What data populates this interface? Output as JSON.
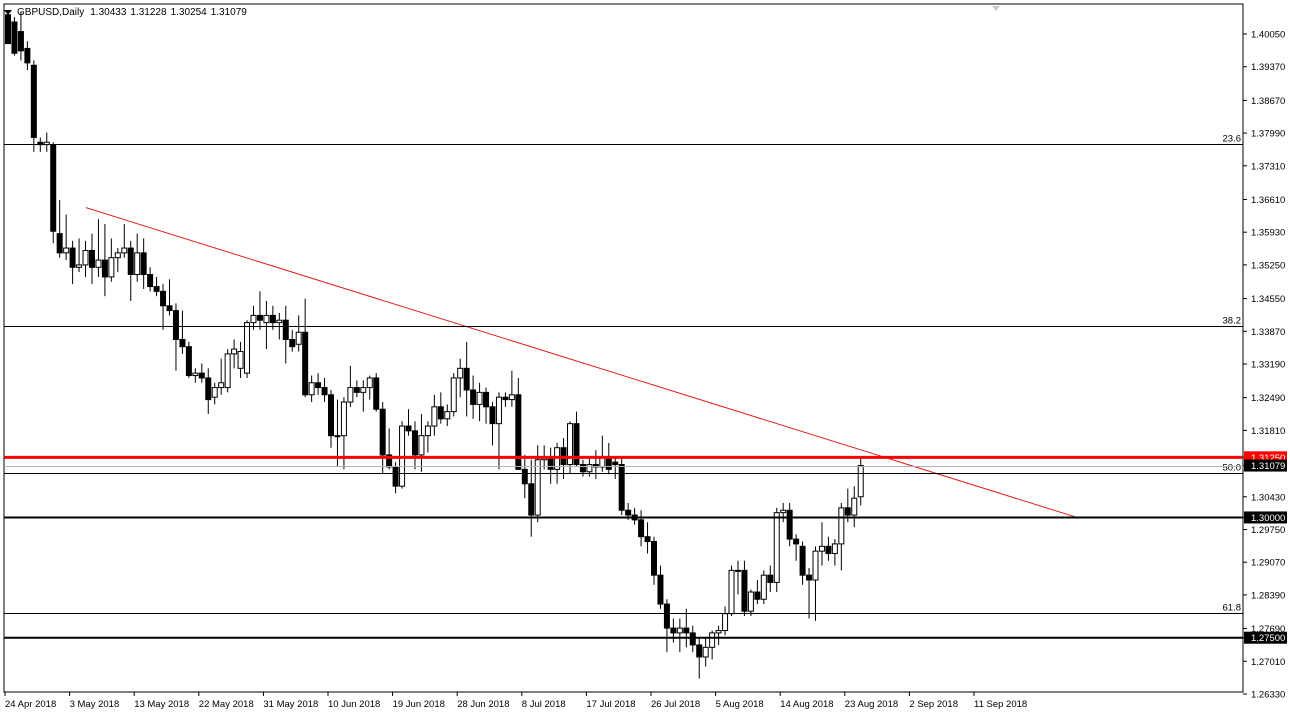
{
  "header": {
    "symbol_label": "GBPUSD,Daily",
    "open": "1.30433",
    "high": "1.31228",
    "low": "1.30254",
    "close": "1.31079"
  },
  "price_axis": {
    "ticks": [
      "1.40050",
      "1.39370",
      "1.38670",
      "1.37990",
      "1.37310",
      "1.36610",
      "1.35930",
      "1.35250",
      "1.34550",
      "1.33870",
      "1.33190",
      "1.32490",
      "1.31810",
      "1.31250",
      "1.31079",
      "1.30430",
      "1.30000",
      "1.29750",
      "1.29070",
      "1.28390",
      "1.27690",
      "1.27500",
      "1.27010",
      "1.26330"
    ]
  },
  "time_axis": {
    "labels": [
      "24 Apr 2018",
      "3 May 2018",
      "13 May 2018",
      "22 May 2018",
      "31 May 2018",
      "10 Jun 2018",
      "19 Jun 2018",
      "28 Jun 2018",
      "8 Jul 2018",
      "17 Jul 2018",
      "26 Jul 2018",
      "5 Aug 2018",
      "14 Aug 2018",
      "23 Aug 2018",
      "2 Sep 2018",
      "11 Sep 2018"
    ]
  },
  "fibonacci": [
    {
      "label": "23.6",
      "price": 1.3776
    },
    {
      "label": "38.2",
      "price": 1.3398
    },
    {
      "label": "50.0",
      "price": 1.3093
    },
    {
      "label": "61.8",
      "price": 1.2801
    }
  ],
  "horizontal_lines": [
    {
      "label": "1.31250",
      "price": 1.3125,
      "color": "#ff0000"
    },
    {
      "label": "1.30000",
      "price": 1.3,
      "color": "#000000"
    },
    {
      "label": "1.27500",
      "price": 1.275,
      "color": "#000000"
    }
  ],
  "chart_data": {
    "type": "candlestick",
    "title": "GBPUSD,Daily",
    "ylim": [
      1.2623,
      1.4095
    ],
    "x_range": [
      "24 Apr 2018",
      "14 Sep 2018"
    ],
    "grid": false,
    "current_price": 1.31079,
    "trendline": {
      "color": "#e02020",
      "points": [
        [
          1.3644,
          "4 May 2018"
        ],
        [
          1.3,
          "19 Sep 2018"
        ]
      ]
    },
    "candles": [
      {
        "o": 1.4045,
        "h": 1.4049,
        "l": 1.3985,
        "c": 1.3985
      },
      {
        "o": 1.403,
        "h": 1.404,
        "l": 1.396,
        "c": 1.3965
      },
      {
        "o": 1.401,
        "h": 1.4052,
        "l": 1.395,
        "c": 1.397
      },
      {
        "o": 1.3975,
        "h": 1.399,
        "l": 1.393,
        "c": 1.3945
      },
      {
        "o": 1.394,
        "h": 1.395,
        "l": 1.376,
        "c": 1.379
      },
      {
        "o": 1.378,
        "h": 1.379,
        "l": 1.376,
        "c": 1.3775
      },
      {
        "o": 1.3775,
        "h": 1.38,
        "l": 1.376,
        "c": 1.378
      },
      {
        "o": 1.3775,
        "h": 1.378,
        "l": 1.357,
        "c": 1.3595
      },
      {
        "o": 1.359,
        "h": 1.366,
        "l": 1.354,
        "c": 1.355
      },
      {
        "o": 1.355,
        "h": 1.363,
        "l": 1.3535,
        "c": 1.356
      },
      {
        "o": 1.356,
        "h": 1.3575,
        "l": 1.3485,
        "c": 1.352
      },
      {
        "o": 1.352,
        "h": 1.358,
        "l": 1.351,
        "c": 1.3525
      },
      {
        "o": 1.3525,
        "h": 1.3575,
        "l": 1.35,
        "c": 1.3555
      },
      {
        "o": 1.3555,
        "h": 1.359,
        "l": 1.3485,
        "c": 1.352
      },
      {
        "o": 1.352,
        "h": 1.362,
        "l": 1.35,
        "c": 1.3535
      },
      {
        "o": 1.3535,
        "h": 1.361,
        "l": 1.346,
        "c": 1.35
      },
      {
        "o": 1.35,
        "h": 1.358,
        "l": 1.349,
        "c": 1.354
      },
      {
        "o": 1.354,
        "h": 1.356,
        "l": 1.351,
        "c": 1.355
      },
      {
        "o": 1.355,
        "h": 1.361,
        "l": 1.354,
        "c": 1.356
      },
      {
        "o": 1.356,
        "h": 1.3575,
        "l": 1.345,
        "c": 1.3505
      },
      {
        "o": 1.3505,
        "h": 1.359,
        "l": 1.349,
        "c": 1.355
      },
      {
        "o": 1.355,
        "h": 1.358,
        "l": 1.3475,
        "c": 1.3505
      },
      {
        "o": 1.3505,
        "h": 1.352,
        "l": 1.347,
        "c": 1.348
      },
      {
        "o": 1.348,
        "h": 1.35,
        "l": 1.346,
        "c": 1.347
      },
      {
        "o": 1.347,
        "h": 1.3485,
        "l": 1.339,
        "c": 1.344
      },
      {
        "o": 1.344,
        "h": 1.3495,
        "l": 1.342,
        "c": 1.343
      },
      {
        "o": 1.343,
        "h": 1.3445,
        "l": 1.3305,
        "c": 1.337
      },
      {
        "o": 1.337,
        "h": 1.343,
        "l": 1.334,
        "c": 1.3355
      },
      {
        "o": 1.3355,
        "h": 1.3365,
        "l": 1.329,
        "c": 1.3295
      },
      {
        "o": 1.3295,
        "h": 1.331,
        "l": 1.328,
        "c": 1.33
      },
      {
        "o": 1.33,
        "h": 1.332,
        "l": 1.328,
        "c": 1.329
      },
      {
        "o": 1.329,
        "h": 1.331,
        "l": 1.3215,
        "c": 1.3245
      },
      {
        "o": 1.325,
        "h": 1.328,
        "l": 1.3235,
        "c": 1.327
      },
      {
        "o": 1.327,
        "h": 1.333,
        "l": 1.3255,
        "c": 1.328
      },
      {
        "o": 1.327,
        "h": 1.335,
        "l": 1.326,
        "c": 1.334
      },
      {
        "o": 1.334,
        "h": 1.337,
        "l": 1.331,
        "c": 1.335
      },
      {
        "o": 1.331,
        "h": 1.3365,
        "l": 1.329,
        "c": 1.3345
      },
      {
        "o": 1.33,
        "h": 1.341,
        "l": 1.329,
        "c": 1.3405
      },
      {
        "o": 1.3405,
        "h": 1.344,
        "l": 1.339,
        "c": 1.342
      },
      {
        "o": 1.342,
        "h": 1.347,
        "l": 1.339,
        "c": 1.341
      },
      {
        "o": 1.3405,
        "h": 1.345,
        "l": 1.335,
        "c": 1.342
      },
      {
        "o": 1.342,
        "h": 1.344,
        "l": 1.339,
        "c": 1.3405
      },
      {
        "o": 1.3405,
        "h": 1.3425,
        "l": 1.337,
        "c": 1.341
      },
      {
        "o": 1.341,
        "h": 1.344,
        "l": 1.332,
        "c": 1.337
      },
      {
        "o": 1.337,
        "h": 1.339,
        "l": 1.3345,
        "c": 1.3355
      },
      {
        "o": 1.336,
        "h": 1.342,
        "l": 1.3345,
        "c": 1.3385
      },
      {
        "o": 1.3385,
        "h": 1.3455,
        "l": 1.325,
        "c": 1.3255
      },
      {
        "o": 1.3255,
        "h": 1.3295,
        "l": 1.324,
        "c": 1.328
      },
      {
        "o": 1.328,
        "h": 1.33,
        "l": 1.3255,
        "c": 1.327
      },
      {
        "o": 1.327,
        "h": 1.329,
        "l": 1.324,
        "c": 1.3255
      },
      {
        "o": 1.3255,
        "h": 1.3265,
        "l": 1.3145,
        "c": 1.317
      },
      {
        "o": 1.317,
        "h": 1.3245,
        "l": 1.3105,
        "c": 1.317
      },
      {
        "o": 1.317,
        "h": 1.325,
        "l": 1.31,
        "c": 1.324
      },
      {
        "o": 1.324,
        "h": 1.3315,
        "l": 1.323,
        "c": 1.327
      },
      {
        "o": 1.327,
        "h": 1.3285,
        "l": 1.325,
        "c": 1.326
      },
      {
        "o": 1.326,
        "h": 1.3285,
        "l": 1.322,
        "c": 1.327
      },
      {
        "o": 1.327,
        "h": 1.3295,
        "l": 1.3245,
        "c": 1.329
      },
      {
        "o": 1.329,
        "h": 1.33,
        "l": 1.322,
        "c": 1.3225
      },
      {
        "o": 1.3225,
        "h": 1.324,
        "l": 1.309,
        "c": 1.313
      },
      {
        "o": 1.313,
        "h": 1.3185,
        "l": 1.31,
        "c": 1.3105
      },
      {
        "o": 1.3105,
        "h": 1.3115,
        "l": 1.305,
        "c": 1.3065
      },
      {
        "o": 1.3065,
        "h": 1.32,
        "l": 1.306,
        "c": 1.319
      },
      {
        "o": 1.319,
        "h": 1.3225,
        "l": 1.317,
        "c": 1.318
      },
      {
        "o": 1.318,
        "h": 1.32,
        "l": 1.31,
        "c": 1.313
      },
      {
        "o": 1.313,
        "h": 1.3215,
        "l": 1.3095,
        "c": 1.317
      },
      {
        "o": 1.317,
        "h": 1.32,
        "l": 1.3135,
        "c": 1.319
      },
      {
        "o": 1.319,
        "h": 1.3255,
        "l": 1.317,
        "c": 1.323
      },
      {
        "o": 1.323,
        "h": 1.326,
        "l": 1.3195,
        "c": 1.3205
      },
      {
        "o": 1.3205,
        "h": 1.3235,
        "l": 1.319,
        "c": 1.322
      },
      {
        "o": 1.322,
        "h": 1.33,
        "l": 1.321,
        "c": 1.329
      },
      {
        "o": 1.329,
        "h": 1.333,
        "l": 1.325,
        "c": 1.331
      },
      {
        "o": 1.331,
        "h": 1.3365,
        "l": 1.321,
        "c": 1.3265
      },
      {
        "o": 1.3265,
        "h": 1.3295,
        "l": 1.3205,
        "c": 1.3235
      },
      {
        "o": 1.3235,
        "h": 1.328,
        "l": 1.32,
        "c": 1.326
      },
      {
        "o": 1.326,
        "h": 1.327,
        "l": 1.3195,
        "c": 1.323
      },
      {
        "o": 1.323,
        "h": 1.324,
        "l": 1.315,
        "c": 1.3195
      },
      {
        "o": 1.3195,
        "h": 1.326,
        "l": 1.31,
        "c": 1.325
      },
      {
        "o": 1.325,
        "h": 1.326,
        "l": 1.323,
        "c": 1.3245
      },
      {
        "o": 1.3245,
        "h": 1.3305,
        "l": 1.323,
        "c": 1.3255
      },
      {
        "o": 1.3255,
        "h": 1.329,
        "l": 1.31,
        "c": 1.31
      },
      {
        "o": 1.31,
        "h": 1.313,
        "l": 1.304,
        "c": 1.307
      },
      {
        "o": 1.307,
        "h": 1.312,
        "l": 1.296,
        "c": 1.3005
      },
      {
        "o": 1.3005,
        "h": 1.315,
        "l": 1.299,
        "c": 1.312
      },
      {
        "o": 1.312,
        "h": 1.315,
        "l": 1.31,
        "c": 1.3125
      },
      {
        "o": 1.3125,
        "h": 1.3145,
        "l": 1.307,
        "c": 1.31
      },
      {
        "o": 1.31,
        "h": 1.3155,
        "l": 1.307,
        "c": 1.3145
      },
      {
        "o": 1.3145,
        "h": 1.3165,
        "l": 1.308,
        "c": 1.311
      },
      {
        "o": 1.311,
        "h": 1.32,
        "l": 1.309,
        "c": 1.3195
      },
      {
        "o": 1.3195,
        "h": 1.322,
        "l": 1.3105,
        "c": 1.311
      },
      {
        "o": 1.311,
        "h": 1.312,
        "l": 1.3085,
        "c": 1.3095
      },
      {
        "o": 1.3095,
        "h": 1.3125,
        "l": 1.3085,
        "c": 1.311
      },
      {
        "o": 1.311,
        "h": 1.314,
        "l": 1.308,
        "c": 1.3105
      },
      {
        "o": 1.3105,
        "h": 1.317,
        "l": 1.3095,
        "c": 1.3125
      },
      {
        "o": 1.3125,
        "h": 1.3155,
        "l": 1.309,
        "c": 1.31
      },
      {
        "o": 1.3115,
        "h": 1.3125,
        "l": 1.308,
        "c": 1.311
      },
      {
        "o": 1.311,
        "h": 1.3125,
        "l": 1.3005,
        "c": 1.3015
      },
      {
        "o": 1.3015,
        "h": 1.303,
        "l": 1.2995,
        "c": 1.3005
      },
      {
        "o": 1.3005,
        "h": 1.302,
        "l": 1.2985,
        "c": 1.2995
      },
      {
        "o": 1.2995,
        "h": 1.3015,
        "l": 1.294,
        "c": 1.296
      },
      {
        "o": 1.296,
        "h": 1.299,
        "l": 1.2925,
        "c": 1.295
      },
      {
        "o": 1.295,
        "h": 1.296,
        "l": 1.286,
        "c": 1.288
      },
      {
        "o": 1.288,
        "h": 1.29,
        "l": 1.281,
        "c": 1.282
      },
      {
        "o": 1.282,
        "h": 1.283,
        "l": 1.272,
        "c": 1.277
      },
      {
        "o": 1.277,
        "h": 1.279,
        "l": 1.274,
        "c": 1.276
      },
      {
        "o": 1.276,
        "h": 1.279,
        "l": 1.272,
        "c": 1.277
      },
      {
        "o": 1.277,
        "h": 1.281,
        "l": 1.273,
        "c": 1.276
      },
      {
        "o": 1.276,
        "h": 1.2775,
        "l": 1.272,
        "c": 1.2735
      },
      {
        "o": 1.2735,
        "h": 1.275,
        "l": 1.2665,
        "c": 1.271
      },
      {
        "o": 1.271,
        "h": 1.275,
        "l": 1.269,
        "c": 1.273
      },
      {
        "o": 1.273,
        "h": 1.2765,
        "l": 1.2705,
        "c": 1.276
      },
      {
        "o": 1.276,
        "h": 1.2775,
        "l": 1.2735,
        "c": 1.2765
      },
      {
        "o": 1.2765,
        "h": 1.2815,
        "l": 1.2755,
        "c": 1.28
      },
      {
        "o": 1.28,
        "h": 1.29,
        "l": 1.2795,
        "c": 1.289
      },
      {
        "o": 1.289,
        "h": 1.291,
        "l": 1.284,
        "c": 1.289
      },
      {
        "o": 1.289,
        "h": 1.291,
        "l": 1.2795,
        "c": 1.2805
      },
      {
        "o": 1.2805,
        "h": 1.285,
        "l": 1.2795,
        "c": 1.2845
      },
      {
        "o": 1.2845,
        "h": 1.287,
        "l": 1.282,
        "c": 1.283
      },
      {
        "o": 1.283,
        "h": 1.289,
        "l": 1.282,
        "c": 1.288
      },
      {
        "o": 1.288,
        "h": 1.29,
        "l": 1.2845,
        "c": 1.2865
      },
      {
        "o": 1.2865,
        "h": 1.302,
        "l": 1.2845,
        "c": 1.301
      },
      {
        "o": 1.301,
        "h": 1.303,
        "l": 1.299,
        "c": 1.3015
      },
      {
        "o": 1.3015,
        "h": 1.303,
        "l": 1.294,
        "c": 1.2955
      },
      {
        "o": 1.2955,
        "h": 1.2965,
        "l": 1.291,
        "c": 1.2945
      },
      {
        "o": 1.294,
        "h": 1.295,
        "l": 1.286,
        "c": 1.288
      },
      {
        "o": 1.288,
        "h": 1.2895,
        "l": 1.279,
        "c": 1.287
      },
      {
        "o": 1.287,
        "h": 1.294,
        "l": 1.2785,
        "c": 1.293
      },
      {
        "o": 1.293,
        "h": 1.299,
        "l": 1.29,
        "c": 1.294
      },
      {
        "o": 1.294,
        "h": 1.296,
        "l": 1.291,
        "c": 1.2925
      },
      {
        "o": 1.2925,
        "h": 1.2955,
        "l": 1.29,
        "c": 1.2945
      },
      {
        "o": 1.2945,
        "h": 1.303,
        "l": 1.289,
        "c": 1.302
      },
      {
        "o": 1.302,
        "h": 1.306,
        "l": 1.299,
        "c": 1.3005
      },
      {
        "o": 1.3005,
        "h": 1.3065,
        "l": 1.298,
        "c": 1.304
      },
      {
        "o": 1.3043,
        "h": 1.3123,
        "l": 1.3025,
        "c": 1.3108
      }
    ]
  }
}
